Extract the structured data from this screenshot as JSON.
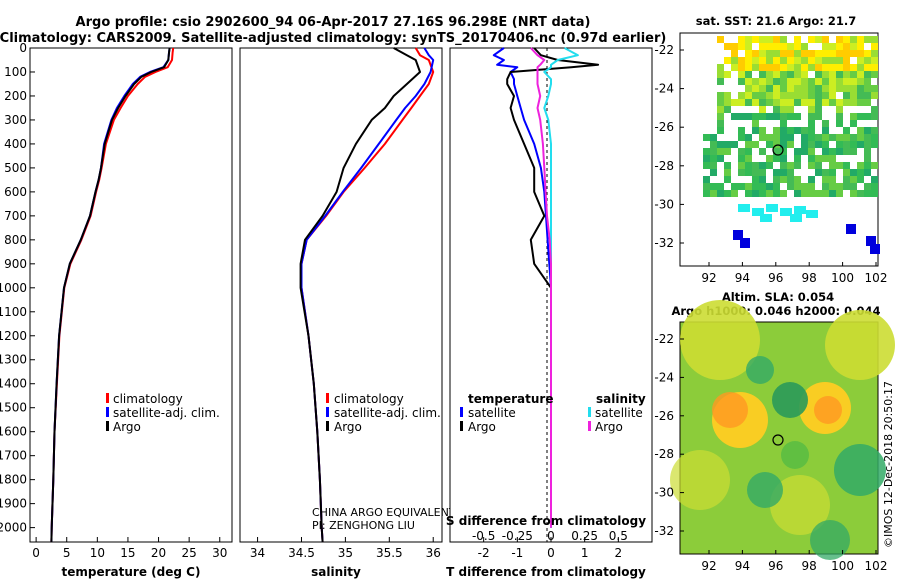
{
  "header": {
    "title_line1": "Argo profile: csio 2902600_94 06-Apr-2017 27.16S 96.298E (NRT data)",
    "title_line2": "Climatology: CARS2009. Satellite-adjusted climatology: synTS_20170406.nc (0.97d earlier)"
  },
  "colors": {
    "climatology": "#ff0000",
    "satellite": "#0000ff",
    "argo": "#000000",
    "argo_salinity_diff": "#ee22dd",
    "satellite_salinity_diff": "#22ddee"
  },
  "depth_axis": {
    "ticks": [
      "0",
      "100",
      "200",
      "300",
      "400",
      "500",
      "600",
      "700",
      "800",
      "900",
      "1000",
      "1100",
      "1200",
      "1300",
      "1400",
      "1500",
      "1600",
      "1700",
      "1800",
      "1900",
      "2000"
    ],
    "range": [
      0,
      2060
    ]
  },
  "panels": {
    "temperature": {
      "xlabel": "temperature (deg C)",
      "xticks": [
        "0",
        "5",
        "10",
        "15",
        "20",
        "25",
        "30"
      ],
      "legend": [
        "climatology",
        "satellite-adj. clim.",
        "Argo"
      ]
    },
    "salinity": {
      "xlabel": "salinity",
      "xticks": [
        "34",
        "34.5",
        "35",
        "35.5",
        "36"
      ],
      "legend": [
        "climatology",
        "satellite-adj. clim.",
        "Argo"
      ],
      "credit_line1": "CHINA ARGO EQUIVALENT",
      "credit_line2": "PI: ZENGHONG LIU"
    },
    "difference": {
      "xlabel": "T difference from climatology",
      "xticks": [
        "-2",
        "-1",
        "0",
        "1",
        "2"
      ],
      "top_label": "S difference from climatology",
      "top_ticks": [
        "-0.5",
        "-0.25",
        "0",
        "0.25",
        "0.5"
      ],
      "legend_temperature_title": "temperature",
      "legend_salinity_title": "salinity",
      "legend_temperature": [
        "satellite",
        "Argo"
      ],
      "legend_salinity": [
        "satellite",
        "Argo"
      ]
    }
  },
  "maps": {
    "sst": {
      "title": "sat. SST: 21.6 Argo: 21.7",
      "yticks": [
        "-22",
        "-24",
        "-26",
        "-28",
        "-30",
        "-32"
      ],
      "xticks": [
        "92",
        "94",
        "96",
        "98",
        "100",
        "102"
      ]
    },
    "sla": {
      "title_line1": "Altim. SLA: 0.054",
      "title_line2": "Argo h1000: 0.046 h2000: 0.044",
      "yticks": [
        "-22",
        "-24",
        "-26",
        "-28",
        "-30",
        "-32"
      ],
      "xticks": [
        "92",
        "94",
        "96",
        "98",
        "100",
        "102"
      ]
    },
    "timestamp": "©IMOS 12-Dec-2018 20:50:17"
  },
  "chart_data": [
    {
      "type": "line",
      "name": "temperature profile",
      "xlabel": "temperature (deg C)",
      "ylabel": "",
      "xlim": [
        -1,
        32
      ],
      "ylim": [
        2060,
        0
      ],
      "depth": [
        0,
        20,
        50,
        80,
        100,
        120,
        150,
        200,
        250,
        300,
        400,
        500,
        550,
        600,
        700,
        800,
        900,
        1000,
        1200,
        1400,
        1600,
        1800,
        2000,
        2060
      ],
      "series": [
        {
          "name": "climatology",
          "values": [
            22.4,
            22.3,
            22.2,
            21.5,
            19.5,
            17.8,
            16.6,
            15.0,
            13.8,
            12.7,
            11.4,
            10.7,
            10.3,
            9.8,
            8.9,
            7.4,
            5.6,
            4.6,
            3.8,
            3.4,
            3.0,
            2.8,
            2.55,
            2.5
          ]
        },
        {
          "name": "satellite-adj. clim.",
          "values": [
            21.8,
            21.7,
            21.6,
            20.8,
            18.6,
            17.0,
            15.8,
            14.4,
            13.2,
            12.3,
            11.1,
            10.6,
            10.2,
            9.7,
            8.8,
            7.3,
            5.5,
            4.55,
            3.75,
            3.35,
            3.0,
            2.8,
            2.55,
            2.5
          ]
        },
        {
          "name": "Argo",
          "values": [
            21.8,
            21.7,
            21.6,
            20.9,
            18.8,
            17.2,
            16.0,
            14.6,
            13.4,
            12.4,
            11.2,
            10.6,
            10.2,
            9.7,
            8.8,
            7.3,
            5.5,
            4.55,
            3.75,
            3.35,
            3.0,
            2.8,
            2.55,
            2.5
          ]
        }
      ]
    },
    {
      "type": "line",
      "name": "salinity profile",
      "xlabel": "salinity",
      "ylabel": "",
      "xlim": [
        33.8,
        36.1
      ],
      "ylim": [
        2060,
        0
      ],
      "depth": [
        0,
        30,
        50,
        100,
        150,
        200,
        250,
        300,
        400,
        500,
        600,
        700,
        800,
        900,
        1000,
        1200,
        1400,
        1600,
        1800,
        2000,
        2060
      ],
      "series": [
        {
          "name": "climatology",
          "values": [
            35.8,
            35.85,
            35.95,
            36.0,
            35.95,
            35.85,
            35.75,
            35.65,
            35.45,
            35.22,
            34.98,
            34.78,
            34.56,
            34.5,
            34.5,
            34.58,
            34.64,
            34.68,
            34.71,
            34.73,
            34.74
          ]
        },
        {
          "name": "satellite-adj. clim.",
          "values": [
            35.9,
            35.95,
            36.0,
            35.97,
            35.9,
            35.8,
            35.68,
            35.58,
            35.38,
            35.18,
            34.97,
            34.77,
            34.56,
            34.5,
            34.5,
            34.58,
            34.64,
            34.68,
            34.71,
            34.73,
            34.74
          ]
        },
        {
          "name": "Argo",
          "values": [
            35.55,
            35.7,
            35.8,
            35.85,
            35.7,
            35.55,
            35.45,
            35.3,
            35.12,
            34.98,
            34.9,
            34.74,
            34.54,
            34.49,
            34.49,
            34.58,
            34.64,
            34.68,
            34.71,
            34.73,
            34.74
          ]
        }
      ]
    },
    {
      "type": "line",
      "name": "difference from climatology",
      "xlabel": "T difference from climatology",
      "x2label": "S difference from climatology",
      "ylabel": "",
      "xlim": [
        -3,
        3
      ],
      "x2lim": [
        -0.75,
        0.75
      ],
      "ylim": [
        2060,
        0
      ],
      "depth": [
        0,
        30,
        50,
        70,
        80,
        100,
        130,
        150,
        200,
        250,
        300,
        400,
        500,
        600,
        700,
        800,
        900,
        1000,
        1200,
        1400,
        1600,
        1800,
        2000
      ],
      "series": [
        {
          "name": "temperature satellite",
          "axis": "T",
          "values": [
            -1.4,
            -1.7,
            -1.4,
            -1.6,
            -1.0,
            -1.2,
            -1.1,
            -1.1,
            -1.0,
            -0.9,
            -0.8,
            -0.5,
            -0.3,
            -0.2,
            -0.15,
            -0.1,
            -0.05,
            0,
            0,
            0,
            0,
            0,
            0
          ]
        },
        {
          "name": "temperature Argo",
          "axis": "T",
          "values": [
            -0.5,
            -0.3,
            0.2,
            1.4,
            0.6,
            -1.2,
            -1.3,
            -1.3,
            -1.1,
            -1.2,
            -1.1,
            -0.8,
            -0.5,
            -0.5,
            -0.2,
            -0.6,
            -0.5,
            0,
            0,
            0,
            0,
            0,
            0
          ]
        },
        {
          "name": "salinity satellite",
          "axis": "S",
          "values": [
            0.1,
            0.2,
            0.05,
            0.0,
            0.0,
            -0.05,
            0.0,
            0.0,
            -0.02,
            -0.05,
            -0.02,
            0.0,
            0.0,
            0.0,
            0.0,
            0.0,
            0.0,
            0.0,
            0.0,
            0.0,
            0.0,
            0.0,
            0.0
          ]
        },
        {
          "name": "salinity Argo",
          "axis": "S",
          "values": [
            -0.15,
            -0.1,
            -0.05,
            -0.08,
            -0.1,
            -0.1,
            -0.1,
            -0.1,
            -0.08,
            -0.1,
            -0.08,
            -0.06,
            -0.05,
            -0.04,
            -0.03,
            -0.01,
            0.0,
            0.0,
            0.0,
            0.0,
            0.0,
            0.0,
            0.0
          ]
        }
      ]
    }
  ]
}
